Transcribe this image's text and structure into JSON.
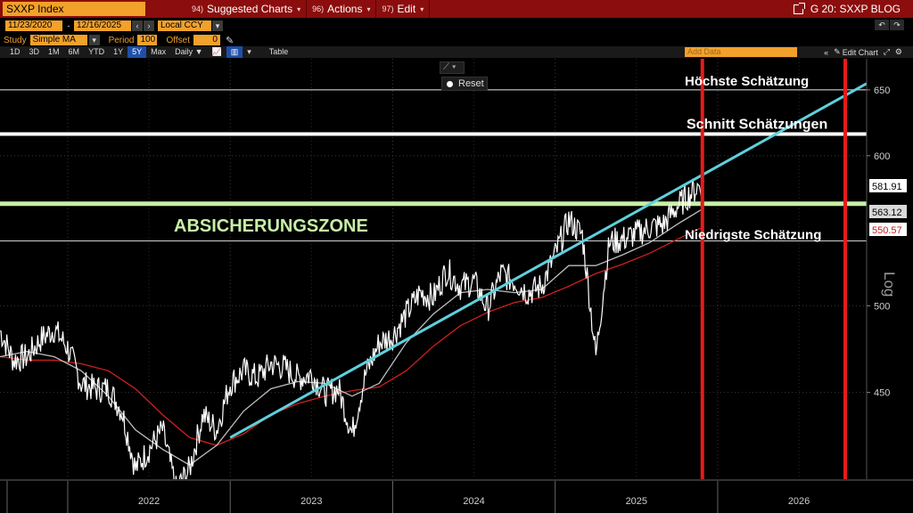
{
  "menubar": {
    "ticker": "SXXP Index",
    "items": [
      {
        "code": "94)",
        "label": "Suggested Charts"
      },
      {
        "code": "96)",
        "label": "Actions"
      },
      {
        "code": "97)",
        "label": "Edit"
      }
    ],
    "right_label": "G 20: SXXP BLOG"
  },
  "controls": {
    "start_date": "11/23/2020",
    "end_date": "12/16/2025",
    "currency": "Local CCY",
    "study_label": "Study",
    "study_value": "Simple MA",
    "period_label": "Period",
    "period_value": "100",
    "offset_label": "Offset",
    "offset_value": "0"
  },
  "tabs": [
    {
      "label": "1D",
      "active": false
    },
    {
      "label": "3D",
      "active": false
    },
    {
      "label": "1M",
      "active": false
    },
    {
      "label": "6M",
      "active": false
    },
    {
      "label": "YTD",
      "active": false
    },
    {
      "label": "1Y",
      "active": false
    },
    {
      "label": "5Y",
      "active": true
    },
    {
      "label": "Max",
      "active": false
    },
    {
      "label": "Daily ▼",
      "active": false
    }
  ],
  "table_label": "Table",
  "add_data_placeholder": "Add Data",
  "edit_chart_label": "Edit Chart",
  "reset_label": "Reset",
  "chart_data": {
    "type": "line",
    "yscale": "log",
    "ylim": [
      405,
      675
    ],
    "yticks": [
      450,
      500,
      600,
      650
    ],
    "x_axis_labels": [
      "2022",
      "2023",
      "2024",
      "2025",
      "2026"
    ],
    "axis_scale_label": "Log",
    "price_labels": {
      "last": "581.91",
      "ma_short": "563.12",
      "ma_long": "550.57"
    },
    "colors": {
      "price": "#ffffff",
      "ma_short": "#bdbdbd",
      "ma_long": "#d21f1f",
      "trendline": "#5fd0dc",
      "zone": "#c7f0a6",
      "vertical_marker": "#e51b1b"
    },
    "series": [
      {
        "name": "",
        "role": "price",
        "x": [
          "2021-08",
          "2021-09",
          "2021-10",
          "2021-11",
          "2021-12",
          "2022-01",
          "2022-02",
          "2022-03",
          "2022-04",
          "2022-05",
          "2022-06",
          "2022-07",
          "2022-08",
          "2022-09",
          "2022-10",
          "2022-11",
          "2022-12",
          "2023-01",
          "2023-02",
          "2023-03",
          "2023-04",
          "2023-05",
          "2023-06",
          "2023-07",
          "2023-08",
          "2023-09",
          "2023-10",
          "2023-11",
          "2023-12",
          "2024-01",
          "2024-02",
          "2024-03",
          "2024-04",
          "2024-05",
          "2024-06",
          "2024-07",
          "2024-08",
          "2024-09",
          "2024-10",
          "2024-11",
          "2024-12",
          "2025-01",
          "2025-02",
          "2025-03",
          "2025-04",
          "2025-05",
          "2025-06",
          "2025-07",
          "2025-08",
          "2025-09",
          "2025-10",
          "2025-11",
          "2025-12"
        ],
        "values": [
          485,
          468,
          470,
          480,
          486,
          475,
          455,
          452,
          452,
          440,
          410,
          420,
          430,
          400,
          410,
          438,
          430,
          455,
          462,
          458,
          466,
          464,
          458,
          460,
          450,
          452,
          428,
          460,
          478,
          482,
          495,
          508,
          505,
          522,
          512,
          515,
          498,
          520,
          515,
          508,
          512,
          532,
          555,
          545,
          470,
          540,
          542,
          546,
          550,
          552,
          564,
          573,
          582
        ]
      },
      {
        "name": "",
        "role": "ma_short",
        "x": [
          "2021-08",
          "2021-10",
          "2021-12",
          "2022-02",
          "2022-04",
          "2022-06",
          "2022-08",
          "2022-10",
          "2022-12",
          "2023-02",
          "2023-04",
          "2023-06",
          "2023-08",
          "2023-10",
          "2023-12",
          "2024-02",
          "2024-04",
          "2024-06",
          "2024-08",
          "2024-10",
          "2024-12",
          "2025-02",
          "2025-04",
          "2025-06",
          "2025-08",
          "2025-10",
          "2025-12"
        ],
        "values": [
          470,
          473,
          470,
          462,
          448,
          430,
          420,
          412,
          422,
          440,
          452,
          456,
          455,
          448,
          455,
          478,
          495,
          508,
          510,
          508,
          510,
          525,
          525,
          532,
          540,
          552,
          563.12
        ]
      },
      {
        "name": "",
        "role": "ma_long",
        "x": [
          "2021-08",
          "2021-10",
          "2021-12",
          "2022-02",
          "2022-04",
          "2022-06",
          "2022-08",
          "2022-10",
          "2022-12",
          "2023-02",
          "2023-04",
          "2023-06",
          "2023-08",
          "2023-10",
          "2023-12",
          "2024-02",
          "2024-04",
          "2024-06",
          "2024-08",
          "2024-10",
          "2024-12",
          "2025-02",
          "2025-04",
          "2025-06",
          "2025-08",
          "2025-10",
          "2025-12"
        ],
        "values": [
          470,
          468,
          468,
          466,
          462,
          452,
          438,
          426,
          422,
          428,
          438,
          444,
          448,
          451,
          453,
          462,
          476,
          488,
          496,
          502,
          505,
          512,
          520,
          526,
          533,
          542,
          550.57
        ]
      }
    ],
    "trendline": {
      "x_start": "2023-01",
      "y_start": 426,
      "x_end": "2026-12",
      "y_end": 655
    },
    "horizontal_levels": [
      {
        "label": "Höchste Schätzung",
        "value": 650
      },
      {
        "label": "Schnitt Schätzungen",
        "value": 616
      },
      {
        "label": "Niedrigste Schätzung",
        "value": 541
      }
    ],
    "zone": {
      "label": "ABSICHERUNGSZONE",
      "value": 566
    },
    "vertical_markers": [
      "2025-12",
      "2026-12"
    ]
  }
}
